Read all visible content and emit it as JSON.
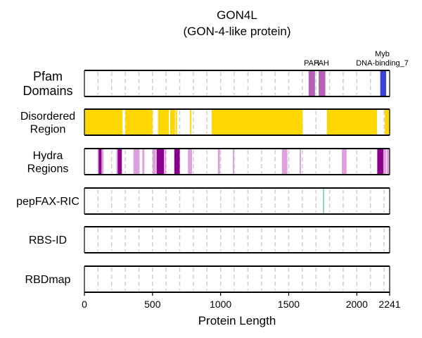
{
  "chart_data": {
    "type": "track",
    "title": "GON4L",
    "subtitle": "(GON-4-like protein)",
    "xlabel": "Protein Length",
    "xlim": [
      0,
      2241
    ],
    "xticks": [
      {
        "value": 0,
        "label": "0"
      },
      {
        "value": 500,
        "label": "500"
      },
      {
        "value": 1000,
        "label": "1000"
      },
      {
        "value": 1500,
        "label": "1500"
      },
      {
        "value": 2000,
        "label": "2000"
      },
      {
        "value": 2241,
        "label": "2241"
      }
    ],
    "gridlines": [
      100,
      200,
      300,
      400,
      500,
      600,
      700,
      800,
      900,
      1000,
      1100,
      1200,
      1300,
      1400,
      1500,
      1600,
      1700,
      1800,
      1900,
      2000,
      2100,
      2200
    ],
    "grid": true,
    "tracks": [
      {
        "key": "pfam",
        "label": "Pfam\nDomains",
        "label_size": 18,
        "segments": [
          {
            "start": 1646,
            "end": 1693,
            "color": "#b560b5"
          },
          {
            "start": 1720,
            "end": 1769,
            "color": "#b560b5"
          },
          {
            "start": 2172,
            "end": 2215,
            "color": "#4040dd"
          }
        ],
        "annotations": [
          {
            "text": "PAH",
            "x": 1668,
            "lines": 1
          },
          {
            "text": "PAH",
            "x": 1740,
            "lines": 1
          },
          {
            "text": "Myb",
            "x": 2187,
            "lines": 2
          },
          {
            "text": "DNA-binding_7",
            "x": 2187,
            "lines": 1
          }
        ]
      },
      {
        "key": "disordered",
        "label": "Disordered\nRegion",
        "label_size": 16,
        "segments": [
          {
            "start": 0,
            "end": 280,
            "color": "#ffd700"
          },
          {
            "start": 300,
            "end": 500,
            "color": "#ffd700"
          },
          {
            "start": 540,
            "end": 620,
            "color": "#ffd700"
          },
          {
            "start": 630,
            "end": 665,
            "color": "#ffd700"
          },
          {
            "start": 670,
            "end": 680,
            "color": "#ffd700"
          },
          {
            "start": 775,
            "end": 785,
            "color": "#ffd700"
          },
          {
            "start": 935,
            "end": 1602,
            "color": "#ffd700"
          },
          {
            "start": 1780,
            "end": 2148,
            "color": "#ffd700"
          },
          {
            "start": 2205,
            "end": 2241,
            "color": "#ffd700"
          }
        ]
      },
      {
        "key": "hydra",
        "label": "Hydra\nRegions",
        "label_size": 16,
        "segments": [
          {
            "start": 98,
            "end": 140,
            "color": "#dda0dd"
          },
          {
            "start": 105,
            "end": 125,
            "color": "#8b008b"
          },
          {
            "start": 235,
            "end": 248,
            "color": "#dda0dd"
          },
          {
            "start": 245,
            "end": 275,
            "color": "#8b008b"
          },
          {
            "start": 360,
            "end": 405,
            "color": "#dda0dd"
          },
          {
            "start": 425,
            "end": 440,
            "color": "#dda0dd"
          },
          {
            "start": 500,
            "end": 525,
            "color": "#dda0dd"
          },
          {
            "start": 530,
            "end": 585,
            "color": "#8b008b"
          },
          {
            "start": 590,
            "end": 600,
            "color": "#dda0dd"
          },
          {
            "start": 660,
            "end": 700,
            "color": "#8b008b"
          },
          {
            "start": 760,
            "end": 790,
            "color": "#dda0dd"
          },
          {
            "start": 980,
            "end": 995,
            "color": "#dda0dd"
          },
          {
            "start": 1090,
            "end": 1100,
            "color": "#dda0dd"
          },
          {
            "start": 1450,
            "end": 1490,
            "color": "#dda0dd"
          },
          {
            "start": 1580,
            "end": 1590,
            "color": "#dda0dd"
          },
          {
            "start": 1890,
            "end": 1925,
            "color": "#dda0dd"
          },
          {
            "start": 2150,
            "end": 2195,
            "color": "#8b008b"
          },
          {
            "start": 2195,
            "end": 2215,
            "color": "#dda0dd"
          },
          {
            "start": 2220,
            "end": 2241,
            "color": "#dda0dd"
          }
        ]
      },
      {
        "key": "pepfax",
        "label": "pepFAX-RIC",
        "label_size": 16,
        "segments": [
          {
            "start": 1752,
            "end": 1759,
            "color": "#66cdaa"
          }
        ]
      },
      {
        "key": "rbsid",
        "label": "RBS-ID",
        "label_size": 16,
        "segments": []
      },
      {
        "key": "rbdmap",
        "label": "RBDmap",
        "label_size": 16,
        "segments": []
      }
    ]
  }
}
